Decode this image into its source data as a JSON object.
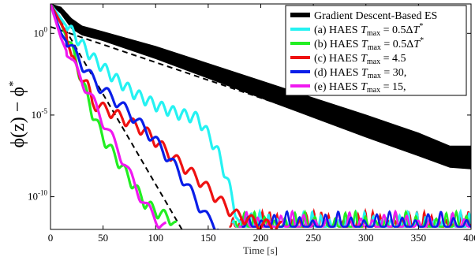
{
  "chart_data": {
    "type": "line",
    "xlabel": "Time [s]",
    "ylabel": {
      "text": "ϕ(z) − ϕ",
      "sup": "*"
    },
    "xlim": [
      0,
      400
    ],
    "y_scale": "log",
    "ylim_log10": [
      -12,
      1.8
    ],
    "xticks": [
      0,
      50,
      100,
      150,
      200,
      250,
      300,
      350,
      400
    ],
    "yticks": [
      {
        "value": 0,
        "base": "10",
        "exp": "0"
      },
      {
        "value": -5,
        "base": "10",
        "exp": "-5"
      },
      {
        "value": -10,
        "base": "10",
        "exp": "-10"
      }
    ],
    "grid": false,
    "legend_position": "top-right",
    "reference_lines": [
      {
        "style": "dashed",
        "color": "#000000",
        "x": [
          0,
          400
        ],
        "y_log10": [
          0.4,
          -8.3
        ]
      },
      {
        "style": "dashed",
        "color": "#000000",
        "x": [
          0,
          125
        ],
        "y_log10": [
          1.8,
          -12
        ]
      }
    ],
    "floor": {
      "x_start": 170,
      "x_end": 400,
      "y_log10_low": -12,
      "y_log10_high": -10.9
    },
    "series": [
      {
        "name": {
          "text": "Gradient Descent-Based ES"
        },
        "color": "#000000",
        "x": [
          0,
          10,
          20,
          30,
          50,
          100,
          150,
          200,
          250,
          300,
          350,
          380,
          400
        ],
        "y_log10_low": [
          1.8,
          1.2,
          0.3,
          -0.1,
          -0.45,
          -1.55,
          -2.75,
          -3.95,
          -5.15,
          -6.35,
          -7.5,
          -8.2,
          -8.3
        ],
        "y_log10_high": [
          1.8,
          1.6,
          0.9,
          0.45,
          0.1,
          -0.8,
          -1.85,
          -2.9,
          -3.95,
          -5.0,
          -6.1,
          -6.9,
          -6.9
        ]
      },
      {
        "name": {
          "pre": "(a) HAES ",
          "tvar": "T",
          "tsub": "max",
          "mid": " = 0.5Δ",
          "t2": "T",
          "sup": "*"
        },
        "color": "#25f2f2",
        "x": [
          0,
          10,
          20,
          30,
          40,
          60,
          80,
          100,
          120,
          140,
          150,
          160,
          170,
          180
        ],
        "y_log10": [
          1.8,
          0.9,
          0.0,
          -0.8,
          -1.6,
          -2.8,
          -3.8,
          -4.5,
          -5.0,
          -5.3,
          -6.3,
          -7.5,
          -9.5,
          -12
        ]
      },
      {
        "name": {
          "pre": "(b) HAES ",
          "tvar": "T",
          "tsub": "max",
          "mid": " = 0.5Δ",
          "t2": "T",
          "sup": "*"
        },
        "color": "#22ee22",
        "x": [
          0,
          10,
          20,
          30,
          40,
          50,
          60,
          70,
          80,
          90,
          100,
          115,
          120
        ],
        "y_log10": [
          1.8,
          0.6,
          -1.0,
          -3.0,
          -5.0,
          -6.5,
          -7.5,
          -8.5,
          -9.5,
          -10.5,
          -11.0,
          -11.5,
          -12
        ]
      },
      {
        "name": {
          "pre": "(c) HAES ",
          "tvar": "T",
          "tsub": "max",
          "mid": " = 4.5"
        },
        "color": "#ee1111",
        "x": [
          0,
          15,
          20,
          35,
          40,
          60,
          90,
          120,
          140,
          160,
          175,
          200,
          220
        ],
        "y_log10": [
          1.8,
          0.0,
          -1.7,
          -3.3,
          -4.4,
          -5.0,
          -6.1,
          -7.9,
          -9.0,
          -10.3,
          -11.2,
          -11.8,
          -12
        ]
      },
      {
        "name": {
          "pre": "(d) HAES ",
          "tvar": "T",
          "tsub": "max",
          "mid": " = 30,"
        },
        "color": "#0a1ee8",
        "x": [
          0,
          10,
          20,
          30,
          40,
          50,
          60,
          80,
          100,
          120,
          140,
          150,
          160
        ],
        "y_log10": [
          1.8,
          0.0,
          -1.0,
          -2.0,
          -2.9,
          -3.6,
          -4.1,
          -5.3,
          -6.7,
          -8.4,
          -10.5,
          -11.5,
          -12
        ]
      },
      {
        "name": {
          "pre": "(e) HAES ",
          "tvar": "T",
          "tsub": "max",
          "mid": " = 15,"
        },
        "color": "#f019f0",
        "x": [
          0,
          10,
          20,
          30,
          40,
          50,
          60,
          70,
          80,
          90,
          100,
          110
        ],
        "y_log10": [
          1.8,
          -0.3,
          -1.8,
          -3.0,
          -4.2,
          -5.5,
          -6.7,
          -8.0,
          -9.4,
          -10.6,
          -11.5,
          -12
        ]
      }
    ]
  }
}
